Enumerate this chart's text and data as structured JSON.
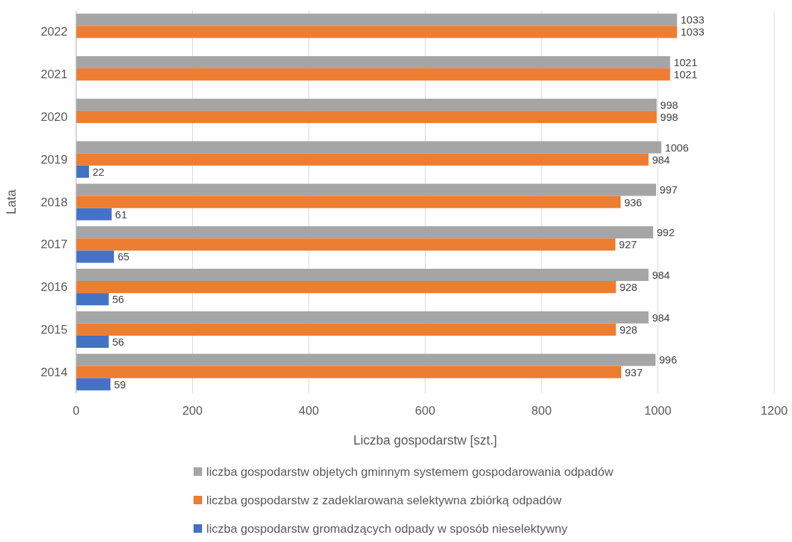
{
  "chart_data": {
    "type": "bar",
    "orientation": "horizontal",
    "ylabel": "Lata",
    "xlabel": "Liczba gospodarstw [szt.]",
    "categories": [
      "2022",
      "2021",
      "2020",
      "2019",
      "2018",
      "2017",
      "2016",
      "2015",
      "2014"
    ],
    "series": [
      {
        "name": "liczba gospodarstw objetych gminnym systemem gospodarowania odpadów",
        "color": "#a5a5a5",
        "values": [
          1033,
          1021,
          998,
          1006,
          997,
          992,
          984,
          984,
          996
        ]
      },
      {
        "name": "liczba gospodarstw z zadeklarowana selektywna zbiórką odpadów",
        "color": "#ed7d31",
        "values": [
          1033,
          1021,
          998,
          984,
          936,
          927,
          928,
          928,
          937
        ]
      },
      {
        "name": "liczba gospodarstw gromadzących odpady w sposób nieselektywny",
        "color": "#4472c4",
        "values": [
          null,
          null,
          null,
          22,
          61,
          65,
          56,
          56,
          59
        ]
      }
    ],
    "xlim": [
      0,
      1200
    ],
    "xticks": [
      0,
      200,
      400,
      600,
      800,
      1000,
      1200
    ],
    "grid": "x",
    "legend": "bottom",
    "data_labels": true
  }
}
